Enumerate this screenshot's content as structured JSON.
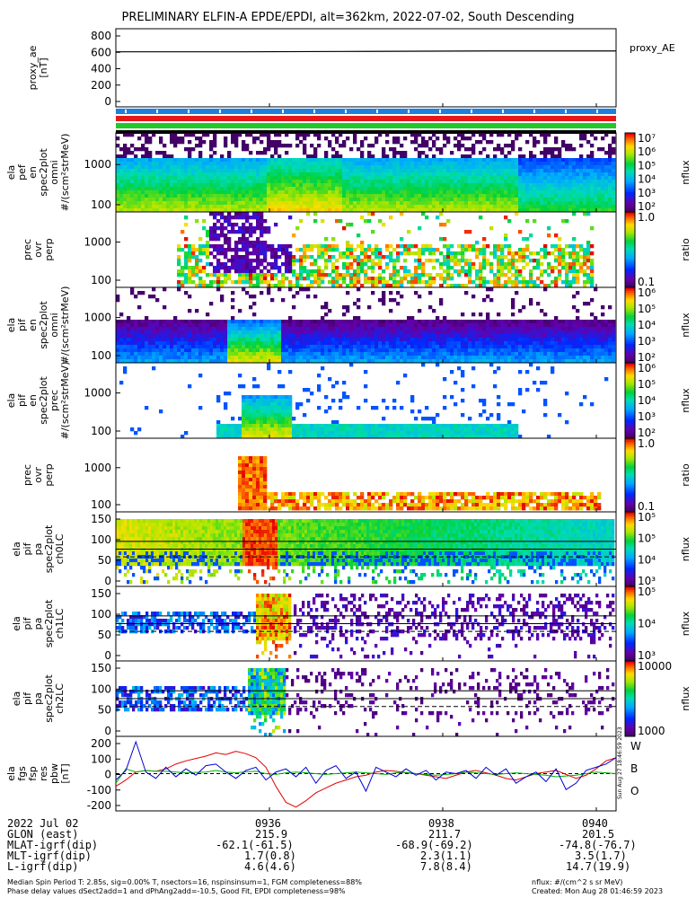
{
  "title": "PRELIMINARY ELFIN-A EPDE/EPDI, alt=362km, 2022-07-02, South Descending",
  "colors": {
    "bar_blue": "#1e7fdc",
    "bar_red": "#e61919",
    "bar_green": "#22c82b",
    "line_red": "#e00000",
    "line_green": "#00b000",
    "line_blue": "#0000d0"
  },
  "panels": [
    {
      "id": "proxy_ae",
      "ylabel": [
        "proxy_ae",
        "[nT]"
      ],
      "yticks": [
        "800",
        "600",
        "400",
        "200",
        "0"
      ],
      "right_label": "proxy_AE",
      "type": "line"
    },
    {
      "id": "pef_omni",
      "ylabel": [
        "ela",
        "pef",
        "en",
        "spec2plot",
        "omni",
        "#/(scm²strMeV)"
      ],
      "yticks": [
        "1000",
        "100"
      ],
      "cbar": {
        "ticks": [
          "10⁷",
          "10⁶",
          "10⁵",
          "10⁴",
          "10³",
          "10²"
        ],
        "label": "nflux"
      }
    },
    {
      "id": "pef_ratio",
      "ylabel": [
        "prec",
        "ovr",
        "perp"
      ],
      "yticks": [
        "1000",
        "100"
      ],
      "cbar": {
        "ticks": [
          "1.0",
          "0.1"
        ],
        "label": "ratio"
      }
    },
    {
      "id": "pif_omni",
      "ylabel": [
        "ela",
        "pif",
        "en",
        "spec2plot",
        "omni",
        "#/(scm²strMeV)"
      ],
      "yticks": [
        "1000",
        "100"
      ],
      "cbar": {
        "ticks": [
          "10⁶",
          "10⁵",
          "10⁴",
          "10³",
          "10²"
        ],
        "label": "nflux"
      }
    },
    {
      "id": "pif_prec",
      "ylabel": [
        "ela",
        "pif",
        "en",
        "spec2plot",
        "prec",
        "#/(scm²strMeV)"
      ],
      "yticks": [
        "1000",
        "100"
      ],
      "cbar": {
        "ticks": [
          "10⁶",
          "10⁵",
          "10⁴",
          "10³",
          "10²"
        ],
        "label": "nflux"
      }
    },
    {
      "id": "pif_ratio",
      "ylabel": [
        "prec",
        "ovr",
        "perp"
      ],
      "yticks": [
        "1000",
        "100"
      ],
      "cbar": {
        "ticks": [
          "1.0",
          "0.1"
        ],
        "label": "ratio"
      }
    },
    {
      "id": "pa_ch0",
      "ylabel": [
        "ela",
        "pif",
        "pa",
        "spec2plot",
        "ch0LC"
      ],
      "yticks": [
        "150",
        "100",
        "50",
        "0"
      ],
      "cbar": {
        "ticks": [
          "10⁵",
          "10⁵",
          "10⁴",
          "10³"
        ],
        "label": "nflux"
      }
    },
    {
      "id": "pa_ch1",
      "ylabel": [
        "ela",
        "pif",
        "pa",
        "spec2plot",
        "ch1LC"
      ],
      "yticks": [
        "150",
        "100",
        "50",
        "0"
      ],
      "cbar": {
        "ticks": [
          "10⁵",
          "10⁴",
          "10³"
        ],
        "label": "nflux"
      }
    },
    {
      "id": "pa_ch2",
      "ylabel": [
        "ela",
        "pif",
        "pa",
        "spec2plot",
        "ch2LC"
      ],
      "yticks": [
        "150",
        "100",
        "50",
        "0"
      ],
      "cbar": {
        "ticks": [
          "10000",
          "1000"
        ],
        "label": "nflux"
      }
    },
    {
      "id": "fgs",
      "ylabel": [
        "ela",
        "fgs",
        "fsp",
        "res",
        "pbw",
        "[nT]"
      ],
      "yticks": [
        "200",
        "100",
        "0",
        "-100",
        "-200"
      ],
      "legend": [
        "W",
        "B",
        "O"
      ]
    }
  ],
  "bottom_rows": [
    {
      "label": "2022 Jul 02",
      "v1": "0936",
      "v2": "0938",
      "v3": "0940"
    },
    {
      "label": "GLON (east)",
      "v1": "215.9",
      "v2": "211.7",
      "v3": "201.5"
    },
    {
      "label": "MLAT-igrf(dip)",
      "v1": "-62.1(-61.5)",
      "v2": "-68.9(-69.2)",
      "v3": "-74.8(-76.7)"
    },
    {
      "label": "MLT-igrf(dip)",
      "v1": "1.7(0.8)",
      "v2": "2.3(1.1)",
      "v3": "3.5(1.7)"
    },
    {
      "label": "L-igrf(dip)",
      "v1": "4.6(4.6)",
      "v2": "7.8(8.4)",
      "v3": "14.7(19.9)"
    }
  ],
  "footer_left": [
    "Median Spin Period T: 2.85s, sig=0.00% T, nsectors=16, nspinsinsum=1, FGM completeness=88%",
    "Phase delay values dSect2add=1 and dPhAng2add=-10.5, Good Fit, EPDI completeness=98%"
  ],
  "footer_right": [
    "nflux: #/(cm^2 s sr MeV)",
    "Created: Mon Aug 28 01:46:59 2023"
  ],
  "side_stamp": "Sun Aug 27 18:46:59 2023",
  "chart_data": {
    "type": "line",
    "title": "PRELIMINARY ELFIN-A EPDE/EPDI, alt=362km, 2022-07-02, South Descending",
    "x_ticks": [
      "0936",
      "0938",
      "0940"
    ],
    "proxy_ae": {
      "ylim": [
        0,
        800
      ],
      "x": [
        0,
        0.25,
        0.5,
        0.75,
        1
      ],
      "y": [
        590,
        590,
        595,
        600,
        600
      ]
    },
    "fgs": {
      "ylim": [
        -200,
        200
      ],
      "series": [
        {
          "name": "W",
          "values": [
            -80,
            -40,
            10,
            20,
            15,
            30,
            60,
            80,
            95,
            110,
            130,
            120,
            140,
            125,
            100,
            40,
            -80,
            -180,
            -210,
            -170,
            -120,
            -90,
            -60,
            -40,
            -20,
            -10,
            10,
            20,
            15,
            5,
            0,
            -10,
            -20,
            -30,
            -10,
            10,
            20,
            5,
            -10,
            -30,
            -40,
            -20,
            0,
            10,
            20,
            -5,
            -30,
            -10,
            30,
            80,
            100
          ]
        },
        {
          "name": "B",
          "values": [
            -60,
            30,
            10,
            20,
            15,
            15,
            10,
            5,
            8,
            10,
            20,
            10,
            5,
            12,
            15,
            0,
            -5,
            5,
            10,
            5,
            0,
            -5,
            0,
            5,
            10,
            5,
            0,
            -5,
            5,
            8,
            0,
            -5,
            -10,
            -5,
            0,
            10,
            5,
            0,
            -5,
            0,
            5,
            0,
            -5,
            -10,
            -20,
            -15,
            -10,
            0,
            10,
            5,
            0
          ]
        },
        {
          "name": "O",
          "values": [
            -40,
            20,
            200,
            10,
            -30,
            40,
            -20,
            30,
            -10,
            50,
            60,
            10,
            -30,
            20,
            40,
            -40,
            10,
            30,
            -20,
            40,
            -60,
            20,
            50,
            -30,
            10,
            -110,
            40,
            10,
            -20,
            30,
            -10,
            20,
            -40,
            10,
            0,
            20,
            -30,
            40,
            -10,
            30,
            -60,
            -20,
            10,
            -50,
            30,
            -100,
            -60,
            20,
            40,
            60,
            100
          ]
        }
      ]
    }
  }
}
